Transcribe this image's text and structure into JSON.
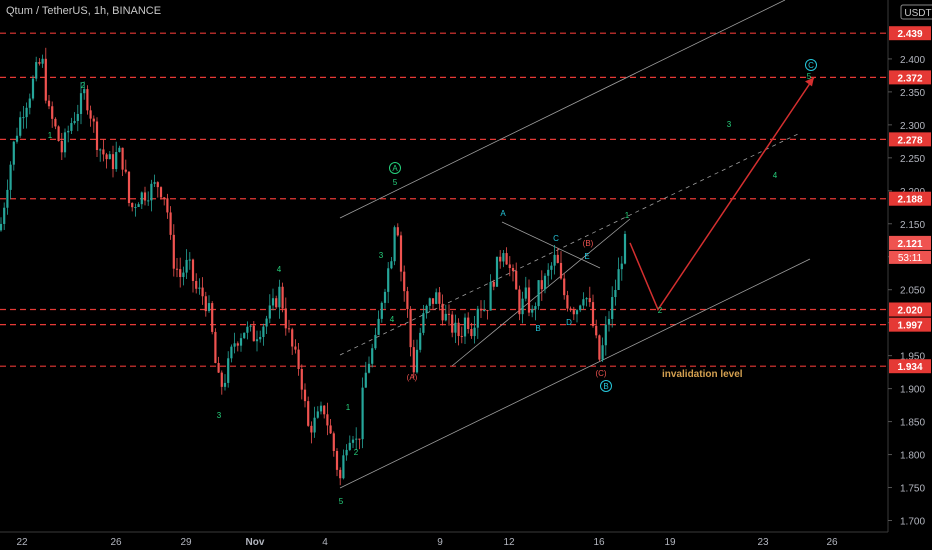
{
  "header": {
    "title": "Qtum / TetherUS, 1h, BINANCE"
  },
  "currency_badge": "USDT",
  "colors": {
    "background": "#000000",
    "up_candle": "#26a69a",
    "down_candle": "#ef5350",
    "level_line": "#e53935",
    "level_label_bg": "#e53935",
    "channel": "#9e9e9e",
    "wave_green": "#26d07c",
    "wave_cyan": "#26c6da",
    "wave_red": "#ef5350",
    "projection": "#d32f2f",
    "annotation_text": "#d4a050"
  },
  "chart_data": {
    "type": "candlestick",
    "symbol": "Qtum / TetherUS",
    "timeframe": "1h",
    "exchange": "BINANCE",
    "ylim": [
      1.69,
      2.5
    ],
    "y_ticks": [
      "2.400",
      "2.350",
      "2.300",
      "2.250",
      "2.200",
      "2.150",
      "2.100",
      "2.050",
      "2.000",
      "1.950",
      "1.900",
      "1.850",
      "1.800",
      "1.750",
      "1.700"
    ],
    "x_ticks": [
      "22",
      "26",
      "29",
      "Nov",
      "4",
      "9",
      "12",
      "16",
      "19",
      "23",
      "26"
    ],
    "horizontal_levels": [
      "2.439",
      "2.372",
      "2.278",
      "2.188",
      "2.020",
      "1.997",
      "1.934"
    ],
    "current_price": "2.121",
    "countdown": "53:11",
    "price_path": [
      [
        0,
        2.14
      ],
      [
        8,
        2.22
      ],
      [
        15,
        2.28
      ],
      [
        22,
        2.32
      ],
      [
        30,
        2.35
      ],
      [
        36,
        2.38
      ],
      [
        42,
        2.4
      ],
      [
        48,
        2.32
      ],
      [
        54,
        2.3
      ],
      [
        62,
        2.26
      ],
      [
        70,
        2.3
      ],
      [
        80,
        2.33
      ],
      [
        85,
        2.35
      ],
      [
        92,
        2.31
      ],
      [
        98,
        2.27
      ],
      [
        106,
        2.25
      ],
      [
        112,
        2.24
      ],
      [
        118,
        2.26
      ],
      [
        124,
        2.24
      ],
      [
        130,
        2.17
      ],
      [
        138,
        2.19
      ],
      [
        148,
        2.2
      ],
      [
        158,
        2.21
      ],
      [
        166,
        2.19
      ],
      [
        172,
        2.1
      ],
      [
        180,
        2.07
      ],
      [
        188,
        2.09
      ],
      [
        196,
        2.05
      ],
      [
        204,
        2.04
      ],
      [
        210,
        2.01
      ],
      [
        216,
        1.93
      ],
      [
        220,
        1.9
      ],
      [
        226,
        1.92
      ],
      [
        234,
        1.97
      ],
      [
        244,
        1.99
      ],
      [
        254,
        1.98
      ],
      [
        264,
        2.0
      ],
      [
        272,
        2.02
      ],
      [
        280,
        2.05
      ],
      [
        286,
        2.0
      ],
      [
        294,
        1.95
      ],
      [
        300,
        1.93
      ],
      [
        308,
        1.84
      ],
      [
        316,
        1.85
      ],
      [
        324,
        1.87
      ],
      [
        332,
        1.82
      ],
      [
        340,
        1.76
      ],
      [
        346,
        1.82
      ],
      [
        352,
        1.84
      ],
      [
        358,
        1.81
      ],
      [
        364,
        1.91
      ],
      [
        370,
        1.95
      ],
      [
        376,
        1.97
      ],
      [
        382,
        2.04
      ],
      [
        388,
        2.08
      ],
      [
        392,
        2.11
      ],
      [
        396,
        2.18
      ],
      [
        402,
        2.06
      ],
      [
        406,
        2.04
      ],
      [
        410,
        1.97
      ],
      [
        414,
        1.93
      ],
      [
        418,
        1.97
      ],
      [
        424,
        2.01
      ],
      [
        430,
        2.03
      ],
      [
        436,
        2.04
      ],
      [
        442,
        2.02
      ],
      [
        448,
        2.0
      ],
      [
        454,
        1.99
      ],
      [
        460,
        1.98
      ],
      [
        466,
        2.01
      ],
      [
        472,
        1.99
      ],
      [
        478,
        2.03
      ],
      [
        486,
        2.02
      ],
      [
        492,
        2.06
      ],
      [
        500,
        2.1
      ],
      [
        504,
        2.12
      ],
      [
        508,
        2.09
      ],
      [
        514,
        2.06
      ],
      [
        520,
        2.02
      ],
      [
        526,
        2.04
      ],
      [
        532,
        2.01
      ],
      [
        538,
        2.05
      ],
      [
        544,
        2.06
      ],
      [
        550,
        2.08
      ],
      [
        556,
        2.1
      ],
      [
        562,
        2.05
      ],
      [
        568,
        2.03
      ],
      [
        576,
        2.02
      ],
      [
        584,
        2.05
      ],
      [
        590,
        2.02
      ],
      [
        596,
        1.97
      ],
      [
        600,
        1.94
      ],
      [
        606,
        1.99
      ],
      [
        612,
        2.03
      ],
      [
        618,
        2.07
      ],
      [
        624,
        2.12
      ],
      [
        628,
        2.12
      ]
    ],
    "projection_path": [
      [
        630,
        2.121
      ],
      [
        658,
        2.02
      ],
      [
        814,
        2.372
      ]
    ],
    "annotations": [
      "invalidation level"
    ],
    "wave_labels": [
      {
        "text": "1",
        "price": 2.28,
        "color": "green"
      },
      {
        "text": "2",
        "price": 2.34,
        "color": "green"
      },
      {
        "text": "3",
        "price": 1.87,
        "color": "green"
      },
      {
        "text": "4",
        "price": 2.07,
        "color": "green"
      },
      {
        "text": "5",
        "price": 1.74,
        "color": "green"
      },
      {
        "text": "1",
        "price": 1.835,
        "color": "green"
      },
      {
        "text": "2",
        "price": 1.8,
        "color": "green"
      },
      {
        "text": "3",
        "price": 2.09,
        "color": "green"
      },
      {
        "text": "4",
        "price": 1.99,
        "color": "green"
      },
      {
        "text": "5",
        "price": 2.19,
        "color": "green"
      },
      {
        "text": "A",
        "price": 2.215,
        "color": "green",
        "circled": true
      },
      {
        "text": "(A)",
        "price": 1.92,
        "color": "red"
      },
      {
        "text": "A",
        "price": 2.145,
        "color": "cyan"
      },
      {
        "text": "B",
        "price": 1.985,
        "color": "cyan"
      },
      {
        "text": "C",
        "price": 2.115,
        "color": "cyan"
      },
      {
        "text": "D",
        "price": 1.99,
        "color": "cyan"
      },
      {
        "text": "E",
        "price": 2.09,
        "color": "cyan"
      },
      {
        "text": "(B)",
        "price": 2.105,
        "color": "red"
      },
      {
        "text": "(C)",
        "price": 1.92,
        "color": "red"
      },
      {
        "text": "B",
        "price": 1.9,
        "color": "cyan",
        "circled": true
      },
      {
        "text": "1",
        "price": 2.145,
        "color": "green"
      },
      {
        "text": "2",
        "price": 1.99,
        "color": "green"
      },
      {
        "text": "3",
        "price": 2.29,
        "color": "green"
      },
      {
        "text": "4",
        "price": 2.195,
        "color": "green"
      },
      {
        "text": "5",
        "price": 2.35,
        "color": "green"
      },
      {
        "text": "C",
        "price": 2.37,
        "color": "cyan",
        "circled": true
      }
    ]
  }
}
